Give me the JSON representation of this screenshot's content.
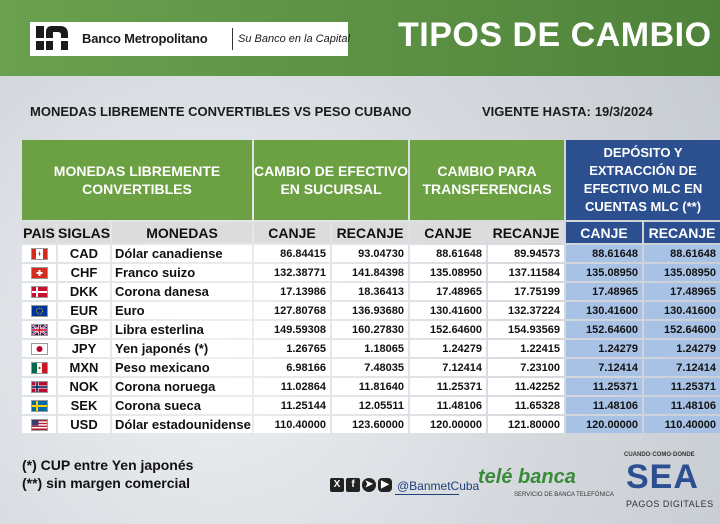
{
  "header": {
    "bank_name": "Banco Metropolitano",
    "slogan": "Su Banco en la Capital",
    "title": "TIPOS DE CAMBIO"
  },
  "subtitle": "MONEDAS LIBREMENTE CONVERTIBLES VS PESO CUBANO",
  "valid": {
    "label": "VIGENTE HASTA:",
    "date": "19/3/2024"
  },
  "table": {
    "group_headers": {
      "currencies": "MONEDAS LIBREMENTE CONVERTIBLES",
      "cash": "CAMBIO DE EFECTIVO EN SUCURSAL",
      "transfers": "CAMBIO PARA TRANSFERENCIAS",
      "mlc": "DEPÓSITO Y EXTRACCIÓN DE EFECTIVO MLC EN CUENTAS MLC (**)"
    },
    "sub_headers": [
      "PAIS",
      "SIGLAS",
      "MONEDAS",
      "CANJE",
      "RECANJE",
      "CANJE",
      "RECANJE",
      "CANJE",
      "RECANJE"
    ],
    "rows": [
      {
        "flag": "canada-flag-icon",
        "code": "CAD",
        "name": "Dólar canadiense",
        "v": [
          "86.84415",
          "93.04730",
          "88.61648",
          "89.94573",
          "88.61648",
          "88.61648"
        ]
      },
      {
        "flag": "switzerland-flag-icon",
        "code": "CHF",
        "name": "Franco suizo",
        "v": [
          "132.38771",
          "141.84398",
          "135.08950",
          "137.11584",
          "135.08950",
          "135.08950"
        ]
      },
      {
        "flag": "denmark-flag-icon",
        "code": "DKK",
        "name": "Corona danesa",
        "v": [
          "17.13986",
          "18.36413",
          "17.48965",
          "17.75199",
          "17.48965",
          "17.48965"
        ]
      },
      {
        "flag": "eu-flag-icon",
        "code": "EUR",
        "name": "Euro",
        "v": [
          "127.80768",
          "136.93680",
          "130.41600",
          "132.37224",
          "130.41600",
          "130.41600"
        ]
      },
      {
        "flag": "uk-flag-icon",
        "code": "GBP",
        "name": "Libra esterlina",
        "v": [
          "149.59308",
          "160.27830",
          "152.64600",
          "154.93569",
          "152.64600",
          "152.64600"
        ]
      },
      {
        "flag": "japan-flag-icon",
        "code": "JPY",
        "name": "Yen japonés (*)",
        "v": [
          "1.26765",
          "1.18065",
          "1.24279",
          "1.22415",
          "1.24279",
          "1.24279"
        ]
      },
      {
        "flag": "mexico-flag-icon",
        "code": "MXN",
        "name": "Peso mexicano",
        "v": [
          "6.98166",
          "7.48035",
          "7.12414",
          "7.23100",
          "7.12414",
          "7.12414"
        ]
      },
      {
        "flag": "norway-flag-icon",
        "code": "NOK",
        "name": "Corona noruega",
        "v": [
          "11.02864",
          "11.81640",
          "11.25371",
          "11.42252",
          "11.25371",
          "11.25371"
        ]
      },
      {
        "flag": "sweden-flag-icon",
        "code": "SEK",
        "name": "Corona sueca",
        "v": [
          "11.25144",
          "12.05511",
          "11.48106",
          "11.65328",
          "11.48106",
          "11.48106"
        ]
      },
      {
        "flag": "usa-flag-icon",
        "code": "USD",
        "name": "Dólar estadounidense",
        "v": [
          "110.40000",
          "123.60000",
          "120.00000",
          "121.80000",
          "120.00000",
          "110.40000"
        ]
      }
    ]
  },
  "notes": [
    "(*) CUP entre Yen japonés",
    "(**) sin margen comercial"
  ],
  "social": {
    "handle": "@BanmetCuba",
    "icons": [
      "x-icon",
      "facebook-icon",
      "telegram-icon",
      "youtube-icon"
    ]
  },
  "telebanca": {
    "brand": "telé banca",
    "tagline": "SERVICIO DE BANCA TELEFÓNICA"
  },
  "sea": {
    "top": "CUANDO·COMO·DONDE",
    "brand": "SEA",
    "sub": "PAGOS DIGITALES"
  },
  "colors": {
    "header_green": "#5d9245",
    "table_green": "#6ba043",
    "mlc_blue": "#2c4f8f",
    "mlc_cell": "#a8c2e6"
  }
}
